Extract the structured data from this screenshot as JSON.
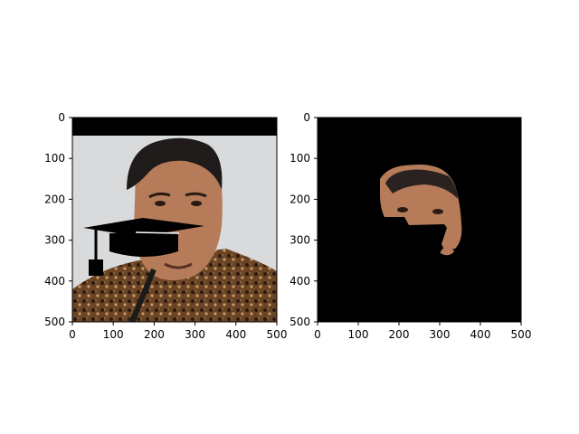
{
  "figure": {
    "panels": [
      {
        "name": "left-panel",
        "image": "portrait with black bar and graduation cap overlay",
        "xlim": [
          0,
          500
        ],
        "ylim": [
          500,
          0
        ],
        "xticks": [
          "0",
          "100",
          "200",
          "300",
          "400",
          "500"
        ],
        "yticks": [
          "0",
          "100",
          "200",
          "300",
          "400",
          "500"
        ]
      },
      {
        "name": "right-panel",
        "image": "masked face region on black background",
        "xlim": [
          0,
          500
        ],
        "ylim": [
          500,
          0
        ],
        "xticks": [
          "0",
          "100",
          "200",
          "300",
          "400",
          "500"
        ],
        "yticks": [
          "0",
          "100",
          "200",
          "300",
          "400",
          "500"
        ]
      }
    ]
  },
  "colors": {
    "background": "#ffffff",
    "axes": "#000000",
    "black_bar": "#000000",
    "photo_bg": "#d9dadc",
    "shirt": "#6b4424",
    "skin": "#b67c5a",
    "hair": "#1f1b1a",
    "cap": "#000000"
  }
}
